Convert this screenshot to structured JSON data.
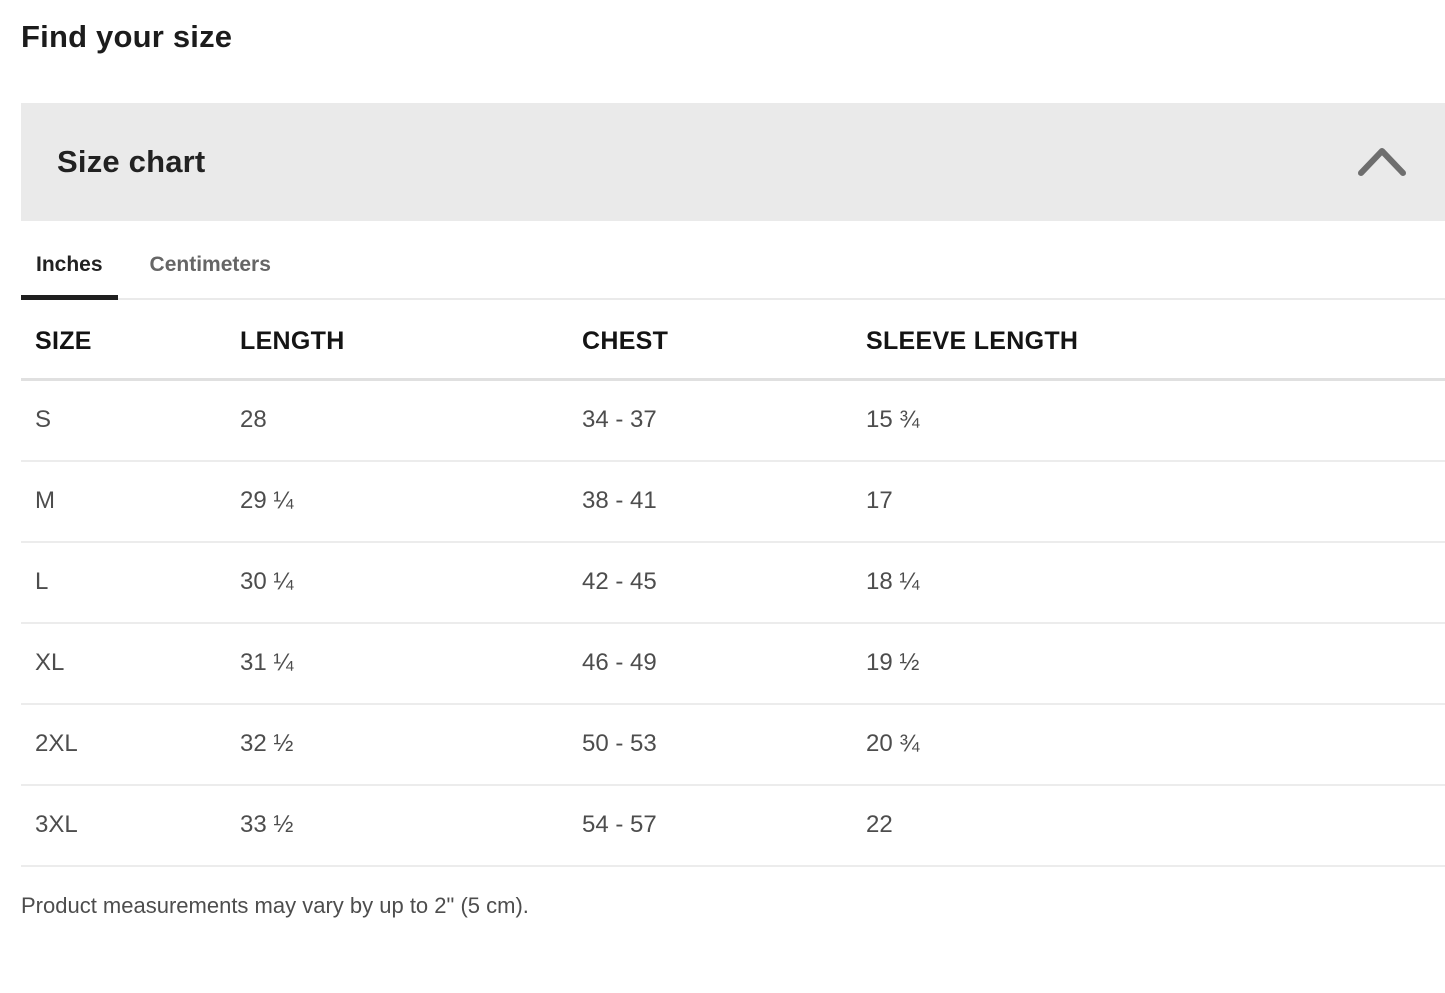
{
  "page": {
    "title": "Find your size"
  },
  "size_chart": {
    "panel_title": "Size chart",
    "collapse_icon": "chevron-up-icon",
    "tabs": [
      {
        "label": "Inches",
        "active": true
      },
      {
        "label": "Centimeters",
        "active": false
      }
    ],
    "table": {
      "columns": [
        "SIZE",
        "LENGTH",
        "CHEST",
        "SLEEVE LENGTH"
      ],
      "rows": [
        [
          "S",
          "28",
          "34 - 37",
          "15 ¾"
        ],
        [
          "M",
          "29 ¼",
          "38 - 41",
          "17"
        ],
        [
          "L",
          "30 ¼",
          "42 - 45",
          "18 ¼"
        ],
        [
          "XL",
          "31 ¼",
          "46 - 49",
          "19 ½"
        ],
        [
          "2XL",
          "32 ½",
          "50 - 53",
          "20 ¾"
        ],
        [
          "3XL",
          "33 ½",
          "54 - 57",
          "22"
        ]
      ]
    },
    "footnote": "Product measurements may vary by up to 2\" (5 cm)."
  },
  "colors": {
    "panel_bg": "#eaeaea",
    "heading_text": "#1c1c1c",
    "body_text": "#4d4d4d",
    "tab_active": "#222222",
    "tab_inactive": "#666666",
    "tab_indicator": "#1f1f1f",
    "header_divider": "#e0e0e0",
    "row_divider": "#ececec",
    "chevron": "#6e6e6e"
  }
}
